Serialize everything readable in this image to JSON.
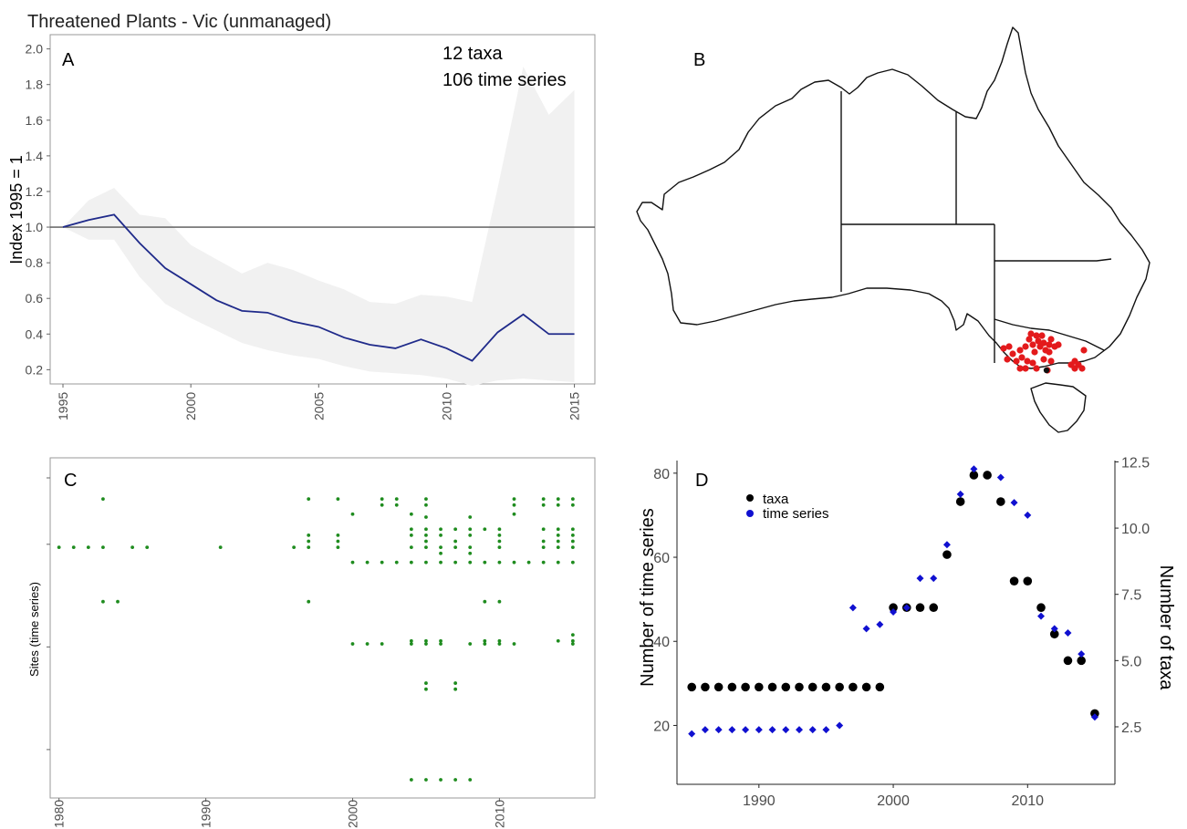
{
  "figure_title": "Threatened Plants - Vic (unmanaged)",
  "colors": {
    "index_line": "#1f2a8a",
    "ci_band": "#f1f1f1",
    "reference_line": "#555555",
    "site_points": "#1f8c1f",
    "map_points": "#e31a1c",
    "taxa_points": "#000000",
    "series_points": "#1010d0",
    "axis_text": "#4d4d4d"
  },
  "panels": {
    "A": {
      "label": "A",
      "annotation_line1": "12 taxa",
      "annotation_line2": "106 time series"
    },
    "B": {
      "label": "B",
      "content": "map of Australia with state borders; red points are monitoring sites in Victoria"
    },
    "C": {
      "label": "C"
    },
    "D": {
      "label": "D",
      "legend": [
        {
          "name": "taxa",
          "color": "#000000",
          "shape": "circle"
        },
        {
          "name": "time series",
          "color": "#1010d0",
          "shape": "diamond"
        }
      ]
    }
  },
  "chart_data": [
    {
      "panel": "A",
      "type": "line",
      "xlabel": "",
      "ylabel": "Index 1995 = 1",
      "xlim": [
        1994.5,
        2015.8
      ],
      "ylim": [
        0.12,
        2.08
      ],
      "xticks": [
        1995,
        2000,
        2005,
        2010,
        2015
      ],
      "yticks": [
        0.2,
        0.4,
        0.6,
        0.8,
        1.0,
        1.2,
        1.4,
        1.6,
        1.8,
        2.0
      ],
      "ytick_labels": [
        "0.2",
        "0.4",
        "0.6",
        "0.8",
        "1.0",
        "1.2",
        "1.4",
        "1.6",
        "1.8",
        "2.0"
      ],
      "reference_y": 1.0,
      "x": [
        1995,
        1996,
        1997,
        1998,
        1999,
        2000,
        2001,
        2002,
        2003,
        2004,
        2005,
        2006,
        2007,
        2008,
        2009,
        2010,
        2011,
        2012,
        2013,
        2014,
        2015
      ],
      "series": [
        {
          "values": [
            1.0,
            1.04,
            1.07,
            0.91,
            0.77,
            0.68,
            0.59,
            0.53,
            0.52,
            0.47,
            0.44,
            0.38,
            0.34,
            0.32,
            0.37,
            0.32,
            0.25,
            0.41,
            0.51,
            0.4,
            0.4
          ]
        }
      ],
      "ci_lower": [
        1.0,
        0.93,
        0.93,
        0.72,
        0.57,
        0.49,
        0.42,
        0.35,
        0.31,
        0.28,
        0.26,
        0.22,
        0.19,
        0.18,
        0.17,
        0.15,
        0.11,
        0.14,
        0.15,
        0.14,
        0.13
      ],
      "ci_upper": [
        1.0,
        1.15,
        1.22,
        1.07,
        1.05,
        0.9,
        0.82,
        0.74,
        0.8,
        0.76,
        0.7,
        0.65,
        0.58,
        0.57,
        0.62,
        0.61,
        0.58,
        1.22,
        1.9,
        1.63,
        1.77
      ],
      "grid": false
    },
    {
      "panel": "C",
      "type": "scatter",
      "xlabel": "",
      "ylabel": "Sites (time series)",
      "xlim": [
        1979.4,
        2016.5
      ],
      "xticks": [
        1980,
        1990,
        2000,
        2010
      ],
      "ylim": [
        0,
        100
      ],
      "yticks": [
        10,
        44,
        78,
        100
      ],
      "row_ys": [
        93,
        91,
        88,
        87,
        83,
        81,
        79,
        77,
        75,
        72,
        59,
        48,
        46,
        45,
        32,
        30,
        0
      ],
      "rows": [
        {
          "y": 93,
          "x": [
            1983,
            1997,
            1999,
            2002,
            2003,
            2005,
            2011,
            2013,
            2014,
            2015
          ]
        },
        {
          "y": 91,
          "x": [
            2002,
            2003,
            2005,
            2011,
            2013,
            2014,
            2015
          ]
        },
        {
          "y": 88,
          "x": [
            2000,
            2004,
            2011
          ]
        },
        {
          "y": 87,
          "x": [
            2005,
            2008
          ]
        },
        {
          "y": 83,
          "x": [
            2004,
            2005,
            2006,
            2007,
            2008,
            2009,
            2010,
            2013,
            2014,
            2015
          ]
        },
        {
          "y": 81,
          "x": [
            1997,
            1999,
            2004,
            2005,
            2006,
            2008,
            2010,
            2014,
            2015
          ]
        },
        {
          "y": 79,
          "x": [
            1997,
            1999,
            2005,
            2007,
            2010,
            2013,
            2014,
            2015
          ]
        },
        {
          "y": 77,
          "x": [
            1980,
            1981,
            1982,
            1983,
            1985,
            1986,
            1991,
            1996,
            1997,
            1999,
            2004,
            2005,
            2006,
            2007,
            2008,
            2010,
            2013,
            2014,
            2015
          ]
        },
        {
          "y": 75,
          "x": [
            2006,
            2008
          ]
        },
        {
          "y": 72,
          "x": [
            2000,
            2001,
            2002,
            2003,
            2004,
            2005,
            2006,
            2007,
            2008,
            2009,
            2010,
            2011,
            2012,
            2013,
            2014,
            2015
          ]
        },
        {
          "y": 59,
          "x": [
            1983,
            1984,
            1997,
            2009,
            2010
          ]
        },
        {
          "y": 48,
          "x": [
            2015
          ]
        },
        {
          "y": 46,
          "x": [
            2004,
            2005,
            2006,
            2009,
            2010,
            2014,
            2015
          ]
        },
        {
          "y": 45,
          "x": [
            2000,
            2001,
            2002,
            2004,
            2005,
            2006,
            2008,
            2009,
            2010,
            2011,
            2015
          ]
        },
        {
          "y": 32,
          "x": [
            2005,
            2007
          ]
        },
        {
          "y": 30,
          "x": [
            2005,
            2007
          ]
        },
        {
          "y": 0,
          "x": [
            2004,
            2005,
            2006,
            2007,
            2008
          ]
        }
      ],
      "grid": false
    },
    {
      "panel": "D",
      "type": "scatter",
      "xlabel": "",
      "ylabel": "Number of time series",
      "ylabel_right": "Number of taxa",
      "xlim": [
        1983.9,
        2016.5
      ],
      "xticks": [
        1990,
        2000,
        2010
      ],
      "ylim": [
        6,
        83
      ],
      "yticks": [
        20,
        40,
        60,
        80
      ],
      "ylim_right": [
        0.33,
        12.55
      ],
      "yticks_right": [
        2.5,
        5.0,
        7.5,
        10.0,
        12.5
      ],
      "ytick_labels_right": [
        "2.5",
        "5.0",
        "7.5",
        "10.0",
        "12.5"
      ],
      "x": [
        1985,
        1986,
        1987,
        1988,
        1989,
        1990,
        1991,
        1992,
        1993,
        1994,
        1995,
        1996,
        1997,
        1998,
        1999,
        2000,
        2001,
        2002,
        2003,
        2004,
        2005,
        2006,
        2007,
        2008,
        2009,
        2010,
        2011,
        2012,
        2013,
        2014,
        2015
      ],
      "series": [
        {
          "name": "taxa",
          "axis": "right",
          "values": [
            4,
            4,
            4,
            4,
            4,
            4,
            4,
            4,
            4,
            4,
            4,
            4,
            4,
            4,
            4,
            7,
            7,
            7,
            7,
            9,
            11,
            12,
            12,
            11,
            8,
            8,
            7,
            6,
            5,
            5,
            3
          ]
        },
        {
          "name": "time series",
          "axis": "left",
          "values": [
            18,
            19,
            19,
            19,
            19,
            19,
            19,
            19,
            19,
            19,
            19,
            20,
            48,
            43,
            44,
            47,
            48,
            55,
            55,
            63,
            75,
            81,
            null,
            79,
            73,
            70,
            46,
            43,
            42,
            37,
            22
          ]
        }
      ],
      "grid": false
    }
  ]
}
